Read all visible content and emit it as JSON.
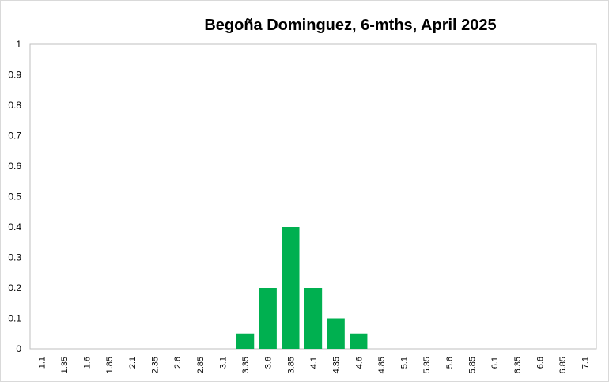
{
  "chart_data": {
    "type": "bar",
    "title": "Begoña Dominguez, 6-mths, April 2025",
    "xlabel": "",
    "ylabel": "",
    "ylim": [
      0,
      1
    ],
    "yticks": [
      "0",
      "0.1",
      "0.2",
      "0.3",
      "0.4",
      "0.5",
      "0.6",
      "0.7",
      "0.8",
      "0.9",
      "1"
    ],
    "categories": [
      "1.1",
      "1.35",
      "1.6",
      "1.85",
      "2.1",
      "2.35",
      "2.6",
      "2.85",
      "3.1",
      "3.35",
      "3.6",
      "3.85",
      "4.1",
      "4.35",
      "4.6",
      "4.85",
      "5.1",
      "5.35",
      "5.6",
      "5.85",
      "6.1",
      "6.35",
      "6.6",
      "6.85",
      "7.1"
    ],
    "values": [
      0,
      0,
      0,
      0,
      0,
      0,
      0,
      0,
      0,
      0.05,
      0.2,
      0.4,
      0.2,
      0.1,
      0.05,
      0,
      0,
      0,
      0,
      0,
      0,
      0,
      0,
      0,
      0
    ],
    "bar_color": "#00b050",
    "grid": false,
    "legend": "none"
  }
}
